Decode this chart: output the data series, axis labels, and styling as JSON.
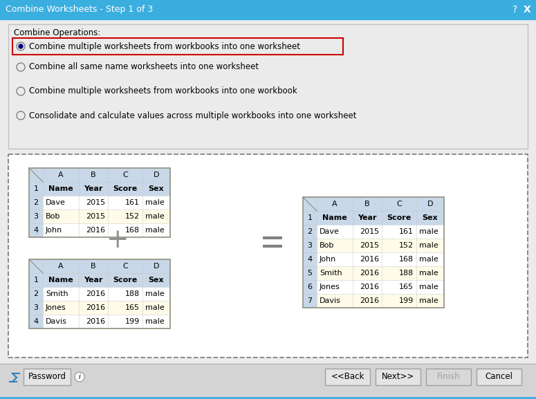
{
  "title": "Combine Worksheets - Step 1 of 3",
  "title_bar_color": "#3BAEE0",
  "bg_color": "#EBEBEB",
  "dialog_bg": "#EBEBEB",
  "combine_ops_label": "Combine Operations:",
  "radio_options": [
    "Combine multiple worksheets from workbooks into one worksheet",
    "Combine all same name worksheets into one worksheet",
    "Combine multiple worksheets from workbooks into one workbook",
    "Consolidate and calculate values across multiple workbooks into one worksheet"
  ],
  "selected_radio": 0,
  "table1_data": [
    [
      "Name",
      "Year",
      "Score",
      "Sex"
    ],
    [
      "Dave",
      "2015",
      "161",
      "male"
    ],
    [
      "Bob",
      "2015",
      "152",
      "male"
    ],
    [
      "John",
      "2016",
      "168",
      "male"
    ]
  ],
  "table2_data": [
    [
      "Name",
      "Year",
      "Score",
      "Sex"
    ],
    [
      "Smith",
      "2016",
      "188",
      "male"
    ],
    [
      "Jones",
      "2016",
      "165",
      "male"
    ],
    [
      "Davis",
      "2016",
      "199",
      "male"
    ]
  ],
  "table3_data": [
    [
      "Name",
      "Year",
      "Score",
      "Sex"
    ],
    [
      "Dave",
      "2015",
      "161",
      "male"
    ],
    [
      "Bob",
      "2015",
      "152",
      "male"
    ],
    [
      "John",
      "2016",
      "168",
      "male"
    ],
    [
      "Smith",
      "2016",
      "188",
      "male"
    ],
    [
      "Jones",
      "2016",
      "165",
      "male"
    ],
    [
      "Davis",
      "2016",
      "199",
      "male"
    ]
  ],
  "header_bg": "#C8D8E8",
  "row_num_bg": "#C8D8E8",
  "data_row_bg_white": "#FFFFFF",
  "data_row_bg_yellow": "#FEFBE8",
  "cell_border_dotted": "#A8A8A8",
  "outer_border": "#909080",
  "dashed_border": "#808080",
  "ops_box_bg": "#EBEBEB",
  "ops_box_border": "#C0C0C0",
  "footer_bg": "#D4D4D4",
  "footer_sep": "#B8B8B8",
  "footer_buttons": [
    "<<Back",
    "Next>>",
    "Finish",
    "Cancel"
  ],
  "footer_btn_bg": "#E4E4E4",
  "footer_btn_border": "#A0A0A0",
  "selected_border_color": "#CC0000",
  "radio_border": "#808080",
  "radio_dot_color": "#000080",
  "plus_color": "#909090",
  "eq_color": "#808080"
}
